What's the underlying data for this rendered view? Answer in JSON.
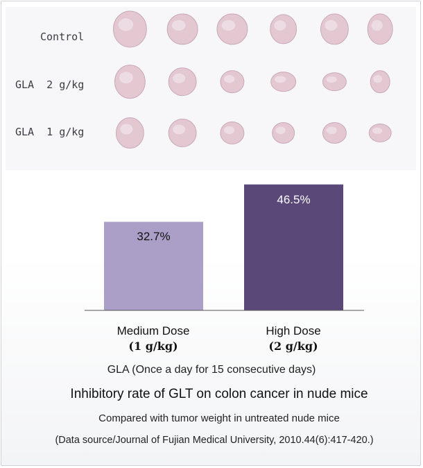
{
  "photo_panel": {
    "rows": [
      {
        "label": "Control",
        "count": 6
      },
      {
        "label": "GLA  2 g/kg",
        "count": 6
      },
      {
        "label": "GLA  1 g/kg",
        "count": 6
      }
    ],
    "tissue_color": "#e3c8d2"
  },
  "chart_data": {
    "type": "bar",
    "categories": [
      "Medium Dose",
      "High Dose"
    ],
    "category_doses": [
      "(1 g/kg)",
      "(2 g/kg)"
    ],
    "values": [
      32.7,
      46.5
    ],
    "value_labels": [
      "32.7%",
      "46.5%"
    ],
    "colors": [
      "#ab9fc7",
      "#5a4878"
    ],
    "label_colors": [
      "#111111",
      "#ffffff"
    ],
    "ylim": [
      0,
      50
    ],
    "xlabel": "GLA (Once a day for 15 consecutive days)",
    "title": "Inhibitory rate of GLT on colon cancer in nude mice",
    "subtitle": "Compared with tumor weight in untreated nude mice",
    "source": "(Data source/Journal of Fujian Medical University, 2010.44(6):417-420.)",
    "grid": false,
    "legend": false
  }
}
